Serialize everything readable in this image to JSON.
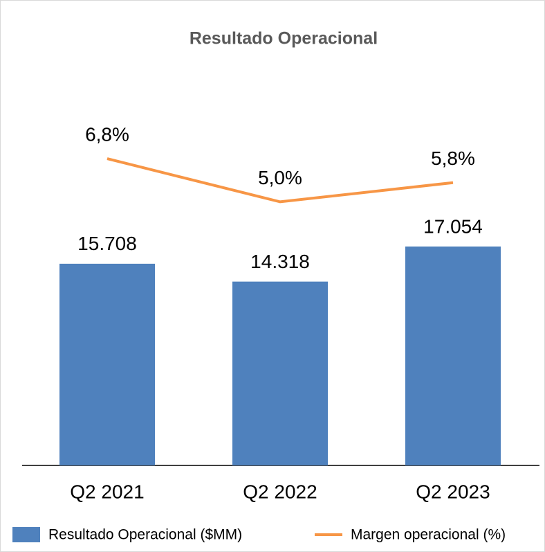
{
  "chart_data": {
    "type": "bar_line",
    "title": "Resultado Operacional",
    "categories": [
      "Q2 2021",
      "Q2 2022",
      "Q2 2023"
    ],
    "series": [
      {
        "name": "Resultado Operacional ($MM)",
        "type": "bar",
        "color": "#4f81bd",
        "values": [
          15708,
          14318,
          17054
        ],
        "value_labels": [
          "15.708",
          "14.318",
          "17.054"
        ]
      },
      {
        "name": "Margen operacional (%)",
        "type": "line",
        "axis": "y2",
        "color": "#f79646",
        "values": [
          6.8,
          5.0,
          5.8
        ],
        "value_labels": [
          "6,8%",
          "5,0%",
          "5,8%"
        ]
      }
    ],
    "ylim": [
      0,
      28000
    ],
    "y2lim": [
      -6,
      9
    ],
    "legend": "bottom"
  }
}
